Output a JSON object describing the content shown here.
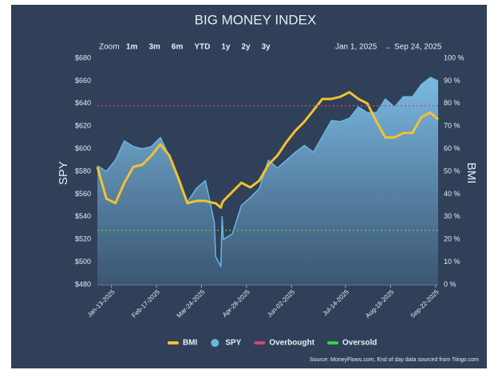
{
  "chart_data": {
    "type": "line",
    "title": "BIG MONEY INDEX",
    "zoom_label": "Zoom",
    "zoom_options": [
      "1m",
      "3m",
      "6m",
      "YTD",
      "1y",
      "2y",
      "3y"
    ],
    "date_range": {
      "from": "Jan 1, 2025",
      "separator": "→",
      "to": "Sep 24, 2025"
    },
    "y_label": "SPY",
    "y2_label": "BMI",
    "source": "Source: MoneyFlows.com, End of day data sourced from Tiingo.com",
    "x": [
      "2025-01-02",
      "2025-01-09",
      "2025-01-16",
      "2025-01-23",
      "2025-01-30",
      "2025-02-06",
      "2025-02-13",
      "2025-02-20",
      "2025-02-27",
      "2025-03-06",
      "2025-03-13",
      "2025-03-20",
      "2025-03-27",
      "2025-04-03",
      "2025-04-04",
      "2025-04-08",
      "2025-04-09",
      "2025-04-10",
      "2025-04-17",
      "2025-04-24",
      "2025-05-01",
      "2025-05-08",
      "2025-05-15",
      "2025-05-22",
      "2025-05-29",
      "2025-06-05",
      "2025-06-12",
      "2025-06-19",
      "2025-06-26",
      "2025-07-03",
      "2025-07-10",
      "2025-07-17",
      "2025-07-24",
      "2025-07-31",
      "2025-08-07",
      "2025-08-14",
      "2025-08-21",
      "2025-08-28",
      "2025-09-04",
      "2025-09-11",
      "2025-09-18",
      "2025-09-24"
    ],
    "xlim": [
      "2025-01-02",
      "2025-09-24"
    ],
    "xticks": [
      {
        "value": "2025-01-13",
        "label": "Jan-13-2025"
      },
      {
        "value": "2025-02-17",
        "label": "Feb-17-2025"
      },
      {
        "value": "2025-03-24",
        "label": "Mar-24-2025"
      },
      {
        "value": "2025-04-28",
        "label": "Apr-28-2025"
      },
      {
        "value": "2025-06-02",
        "label": "Jun-02-2025"
      },
      {
        "value": "2025-07-14",
        "label": "Jul-14-2025"
      },
      {
        "value": "2025-08-18",
        "label": "Aug-18-2025"
      },
      {
        "value": "2025-09-22",
        "label": "Sep-22-2025"
      }
    ],
    "series": [
      {
        "name": "BMI",
        "color": "#f2c230",
        "axis": "y2",
        "values": [
          52,
          38,
          36,
          45,
          52,
          53,
          57,
          62,
          57,
          47,
          36,
          37,
          37,
          36,
          36,
          34,
          36,
          37,
          41,
          45,
          43,
          46,
          53,
          57,
          63,
          68,
          72,
          77,
          82,
          82,
          83,
          85,
          82,
          80,
          72,
          65,
          65,
          67,
          67,
          74,
          76,
          73
        ]
      },
      {
        "name": "SPY",
        "color": "#6cb4e4",
        "values": [
          585,
          580,
          590,
          607,
          602,
          600,
          602,
          610,
          593,
          575,
          553,
          565,
          572,
          535,
          505,
          496,
          540,
          520,
          525,
          550,
          557,
          565,
          590,
          583,
          590,
          597,
          603,
          597,
          611,
          625,
          624,
          627,
          637,
          632,
          632,
          644,
          637,
          646,
          646,
          657,
          663,
          660
        ]
      }
    ],
    "reference_lines": [
      {
        "name": "Overbought",
        "value": 79,
        "color": "#d2457a",
        "axis": "y2"
      },
      {
        "name": "Oversold",
        "value": 24,
        "color": "#3ecf4a",
        "axis": "y2"
      }
    ],
    "ylim": [
      480,
      680
    ],
    "yticks": [
      {
        "value": 480,
        "label": "$480"
      },
      {
        "value": 500,
        "label": "$500"
      },
      {
        "value": 520,
        "label": "$520"
      },
      {
        "value": 540,
        "label": "$540"
      },
      {
        "value": 560,
        "label": "$560"
      },
      {
        "value": 580,
        "label": "$580"
      },
      {
        "value": 600,
        "label": "$600"
      },
      {
        "value": 620,
        "label": "$620"
      },
      {
        "value": 640,
        "label": "$640"
      },
      {
        "value": 660,
        "label": "$660"
      },
      {
        "value": 680,
        "label": "$680"
      }
    ],
    "y2lim": [
      0,
      100
    ],
    "y2ticks": [
      {
        "value": 0,
        "label": "0 %"
      },
      {
        "value": 10,
        "label": "10 %"
      },
      {
        "value": 20,
        "label": "20 %"
      },
      {
        "value": 30,
        "label": "30 %"
      },
      {
        "value": 40,
        "label": "40 %"
      },
      {
        "value": 50,
        "label": "50 %"
      },
      {
        "value": 60,
        "label": "60 %"
      },
      {
        "value": 70,
        "label": "70 %"
      },
      {
        "value": 80,
        "label": "80 %"
      },
      {
        "value": 90,
        "label": "90 %"
      },
      {
        "value": 100,
        "label": "100 %"
      }
    ],
    "grid": false,
    "legend": "bottom"
  }
}
